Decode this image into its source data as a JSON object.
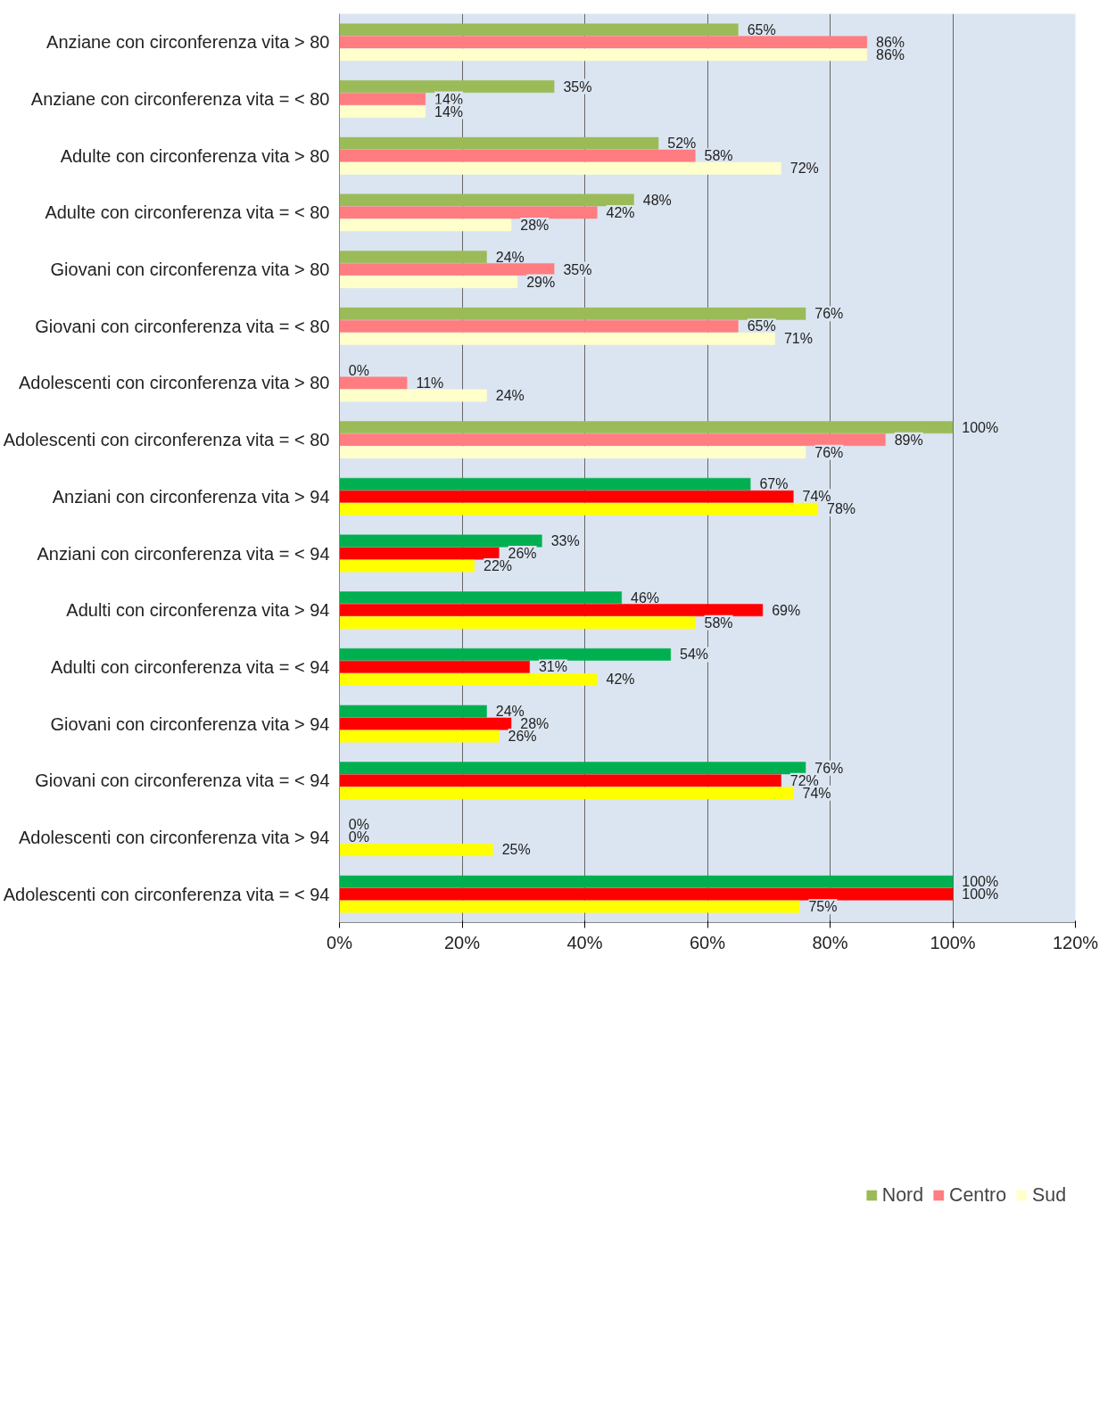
{
  "chart_data": {
    "type": "bar",
    "orientation": "horizontal",
    "categories": [
      "Anziane con circonferenza vita > 80",
      "Anziane con circonferenza vita = < 80",
      "Adulte con circonferenza vita > 80",
      "Adulte con circonferenza vita = < 80",
      "Giovani con circonferenza vita > 80",
      "Giovani con circonferenza vita = < 80",
      "Adolescenti con circonferenza vita > 80",
      "Adolescenti con circonferenza vita = < 80",
      "Anziani con circonferenza vita > 94",
      "Anziani con circonferenza vita = < 94",
      "Adulti con circonferenza vita > 94",
      "Adulti con circonferenza vita = < 94",
      "Giovani con circonferenza vita > 94",
      "Giovani con circonferenza vita = < 94",
      "Adolescenti con circonferenza vita > 94",
      "Adolescenti con circonferenza vita = < 94"
    ],
    "series": [
      {
        "name": "Nord",
        "colors": [
          "#9bbb59",
          "#9bbb59",
          "#9bbb59",
          "#9bbb59",
          "#9bbb59",
          "#9bbb59",
          "#9bbb59",
          "#9bbb59",
          "#00b050",
          "#00b050",
          "#00b050",
          "#00b050",
          "#00b050",
          "#00b050",
          "#00b050",
          "#00b050"
        ],
        "values": [
          65,
          35,
          52,
          48,
          24,
          76,
          0,
          100,
          67,
          33,
          46,
          54,
          24,
          76,
          0,
          100
        ],
        "value_labels": [
          "65%",
          "35%",
          "52%",
          "48%",
          "24%",
          "76%",
          "0%",
          "100%",
          "67%",
          "33%",
          "46%",
          "54%",
          "24%",
          "76%",
          "0%",
          "100%"
        ]
      },
      {
        "name": "Centro",
        "colors": [
          "#ff7c80",
          "#ff7c80",
          "#ff7c80",
          "#ff7c80",
          "#ff7c80",
          "#ff7c80",
          "#ff7c80",
          "#ff7c80",
          "#ff0000",
          "#ff0000",
          "#ff0000",
          "#ff0000",
          "#ff0000",
          "#ff0000",
          "#ff0000",
          "#ff0000"
        ],
        "values": [
          86,
          14,
          58,
          42,
          35,
          65,
          11,
          89,
          74,
          26,
          69,
          31,
          28,
          72,
          0,
          100
        ],
        "value_labels": [
          "86%",
          "14%",
          "58%",
          "42%",
          "35%",
          "65%",
          "11%",
          "89%",
          "74%",
          "26%",
          "69%",
          "31%",
          "28%",
          "72%",
          "0%",
          "100%"
        ]
      },
      {
        "name": "Sud",
        "colors": [
          "#ffffcc",
          "#ffffcc",
          "#ffffcc",
          "#ffffcc",
          "#ffffcc",
          "#ffffcc",
          "#ffffcc",
          "#ffffcc",
          "#ffff00",
          "#ffff00",
          "#ffff00",
          "#ffff00",
          "#ffff00",
          "#ffff00",
          "#ffff00",
          "#ffff00"
        ],
        "values": [
          86,
          14,
          72,
          28,
          29,
          71,
          24,
          76,
          78,
          22,
          58,
          42,
          26,
          74,
          25,
          75
        ],
        "value_labels": [
          "86%",
          "14%",
          "72%",
          "28%",
          "29%",
          "71%",
          "24%",
          "76%",
          "78%",
          "22%",
          "58%",
          "42%",
          "26%",
          "74%",
          "25%",
          "75%"
        ]
      }
    ],
    "xlim": [
      0,
      120
    ],
    "xticks": [
      {
        "value": 0,
        "label": "0%"
      },
      {
        "value": 20,
        "label": "20%"
      },
      {
        "value": 40,
        "label": "40%"
      },
      {
        "value": 60,
        "label": "60%"
      },
      {
        "value": 80,
        "label": "80%"
      },
      {
        "value": 100,
        "label": "100%"
      },
      {
        "value": 120,
        "label": "120%"
      }
    ],
    "grid": "x",
    "legend": "bottom"
  }
}
